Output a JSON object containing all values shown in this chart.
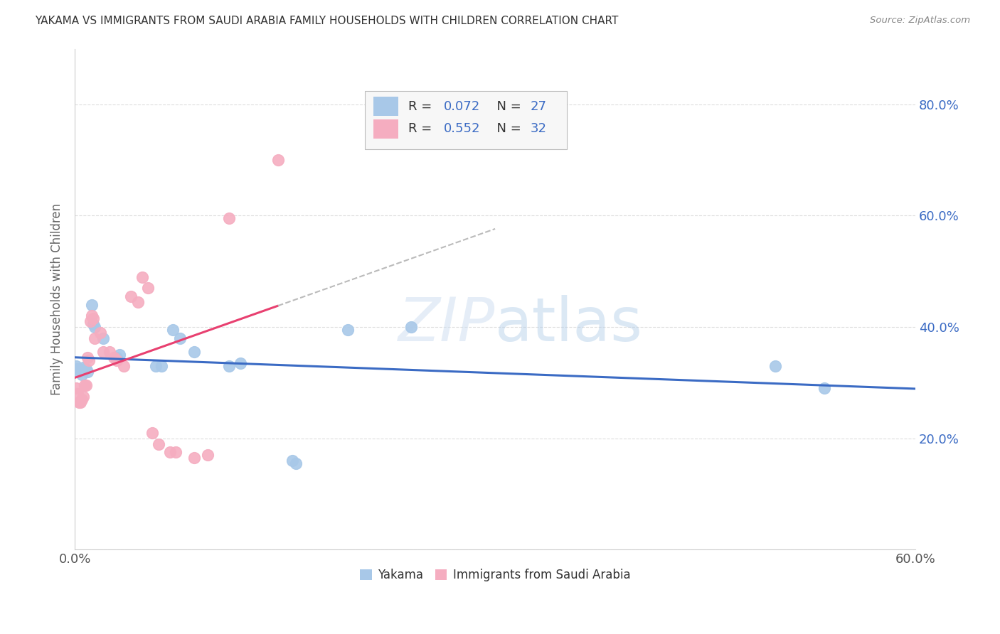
{
  "title": "YAKAMA VS IMMIGRANTS FROM SAUDI ARABIA FAMILY HOUSEHOLDS WITH CHILDREN CORRELATION CHART",
  "source": "Source: ZipAtlas.com",
  "ylabel": "Family Households with Children",
  "watermark": "ZIPatlas",
  "xlim": [
    0.0,
    0.6
  ],
  "ylim": [
    0.0,
    0.9
  ],
  "xticks": [
    0.0,
    0.06,
    0.12,
    0.18,
    0.24,
    0.3,
    0.36,
    0.42,
    0.48,
    0.54,
    0.6
  ],
  "xtick_labels": [
    "0.0%",
    "",
    "",
    "",
    "",
    "",
    "",
    "",
    "",
    "",
    "60.0%"
  ],
  "yticks": [
    0.0,
    0.2,
    0.4,
    0.6,
    0.8
  ],
  "right_ytick_labels": [
    "",
    "20.0%",
    "40.0%",
    "60.0%",
    "80.0%"
  ],
  "yakama_color": "#a8c8e8",
  "saudi_color": "#f5adc0",
  "yakama_line_color": "#3b6bc4",
  "saudi_line_color": "#e84070",
  "yakama_R": 0.072,
  "yakama_N": 27,
  "saudi_R": 0.552,
  "saudi_N": 32,
  "stat_color": "#3b6bc4",
  "background_color": "#ffffff",
  "grid_color": "#dddddd",
  "yakama_points": [
    [
      0.001,
      0.33
    ],
    [
      0.002,
      0.325
    ],
    [
      0.003,
      0.32
    ],
    [
      0.005,
      0.315
    ],
    [
      0.006,
      0.328
    ],
    [
      0.007,
      0.325
    ],
    [
      0.008,
      0.325
    ],
    [
      0.009,
      0.32
    ],
    [
      0.012,
      0.44
    ],
    [
      0.013,
      0.405
    ],
    [
      0.014,
      0.4
    ],
    [
      0.02,
      0.38
    ],
    [
      0.03,
      0.345
    ],
    [
      0.032,
      0.35
    ],
    [
      0.058,
      0.33
    ],
    [
      0.062,
      0.33
    ],
    [
      0.07,
      0.395
    ],
    [
      0.075,
      0.38
    ],
    [
      0.085,
      0.355
    ],
    [
      0.11,
      0.33
    ],
    [
      0.118,
      0.335
    ],
    [
      0.155,
      0.16
    ],
    [
      0.158,
      0.155
    ],
    [
      0.195,
      0.395
    ],
    [
      0.24,
      0.4
    ],
    [
      0.5,
      0.33
    ],
    [
      0.535,
      0.29
    ]
  ],
  "saudi_points": [
    [
      0.001,
      0.29
    ],
    [
      0.002,
      0.28
    ],
    [
      0.003,
      0.265
    ],
    [
      0.004,
      0.265
    ],
    [
      0.005,
      0.27
    ],
    [
      0.006,
      0.275
    ],
    [
      0.007,
      0.295
    ],
    [
      0.008,
      0.295
    ],
    [
      0.009,
      0.345
    ],
    [
      0.01,
      0.34
    ],
    [
      0.011,
      0.41
    ],
    [
      0.012,
      0.42
    ],
    [
      0.013,
      0.415
    ],
    [
      0.014,
      0.38
    ],
    [
      0.018,
      0.39
    ],
    [
      0.02,
      0.355
    ],
    [
      0.025,
      0.355
    ],
    [
      0.028,
      0.345
    ],
    [
      0.03,
      0.34
    ],
    [
      0.035,
      0.33
    ],
    [
      0.04,
      0.455
    ],
    [
      0.045,
      0.445
    ],
    [
      0.048,
      0.49
    ],
    [
      0.052,
      0.47
    ],
    [
      0.055,
      0.21
    ],
    [
      0.06,
      0.19
    ],
    [
      0.068,
      0.175
    ],
    [
      0.072,
      0.175
    ],
    [
      0.085,
      0.165
    ],
    [
      0.095,
      0.17
    ],
    [
      0.11,
      0.595
    ],
    [
      0.145,
      0.7
    ]
  ]
}
